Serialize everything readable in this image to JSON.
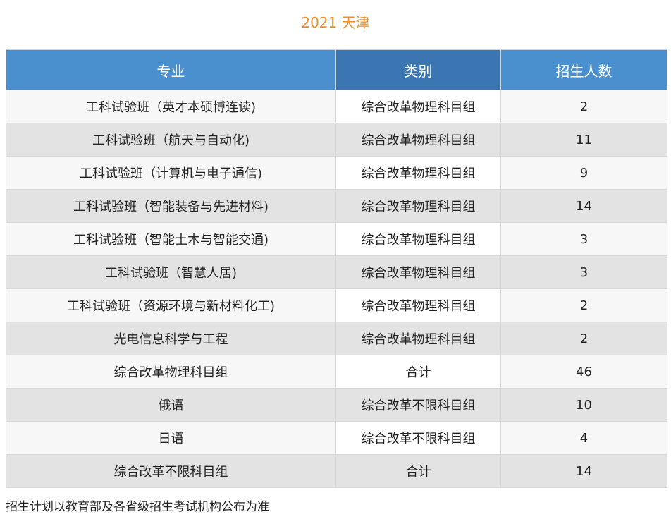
{
  "title": "2021 天津",
  "table": {
    "headers": [
      "专业",
      "类别",
      "招生人数"
    ],
    "rows": [
      [
        "工科试验班（英才本硕博连读)",
        "综合改革物理科目组",
        "2"
      ],
      [
        "工科试验班（航天与自动化)",
        "综合改革物理科目组",
        "11"
      ],
      [
        "工科试验班（计算机与电子通信)",
        "综合改革物理科目组",
        "9"
      ],
      [
        "工科试验班（智能装备与先进材料)",
        "综合改革物理科目组",
        "14"
      ],
      [
        "工科试验班（智能土木与智能交通)",
        "综合改革物理科目组",
        "3"
      ],
      [
        "工科试验班（智慧人居)",
        "综合改革物理科目组",
        "3"
      ],
      [
        "工科试验班（资源环境与新材料化工)",
        "综合改革物理科目组",
        "2"
      ],
      [
        "光电信息科学与工程",
        "综合改革物理科目组",
        "2"
      ],
      [
        "综合改革物理科目组",
        "合计",
        "46"
      ],
      [
        "俄语",
        "综合改革不限科目组",
        "10"
      ],
      [
        "日语",
        "综合改革不限科目组",
        "4"
      ],
      [
        "综合改革不限科目组",
        "合计",
        "14"
      ]
    ]
  },
  "note": "招生计划以教育部及各省级招生考试机构公布为准",
  "colors": {
    "title": "#e8902c",
    "header": "#4a90cf",
    "header_highlight": "#3b76b3",
    "row_light": "#f7f7f7",
    "row_dark": "#e3e3e3"
  }
}
